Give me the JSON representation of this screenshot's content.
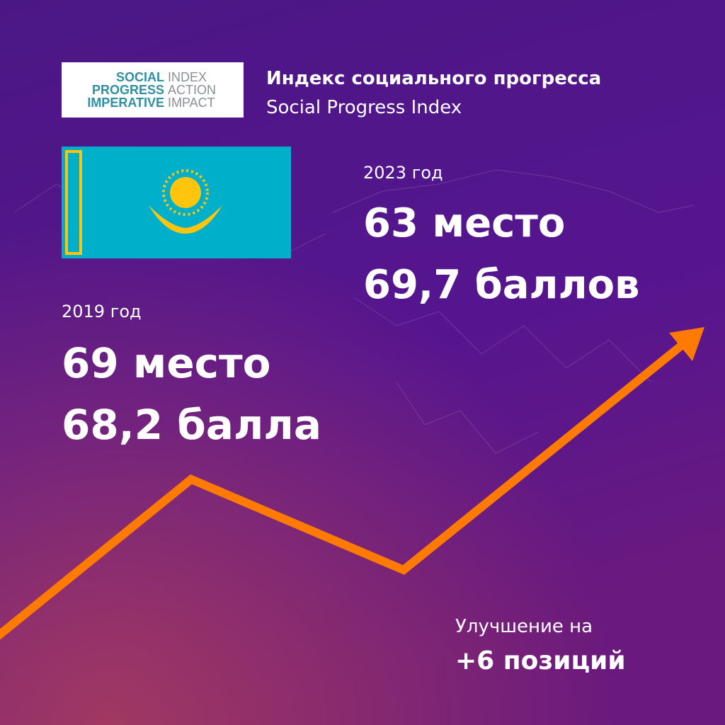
{
  "logo": {
    "left": [
      "SOCIAL",
      "PROGRESS",
      "IMPERATIVE"
    ],
    "right": [
      "INDEX",
      "ACTION",
      "IMPACT"
    ]
  },
  "header": {
    "title": "Индекс социального прогресса",
    "subtitle": "Social Progress Index"
  },
  "year_2023": {
    "label": "2023 год",
    "rank": "63 место",
    "score": "69,7 баллов"
  },
  "year_2019": {
    "label": "2019 год",
    "rank": "69 место",
    "score": "68,2 балла"
  },
  "improvement": {
    "label": "Улучшение на",
    "value": "+6 позиций"
  }
}
